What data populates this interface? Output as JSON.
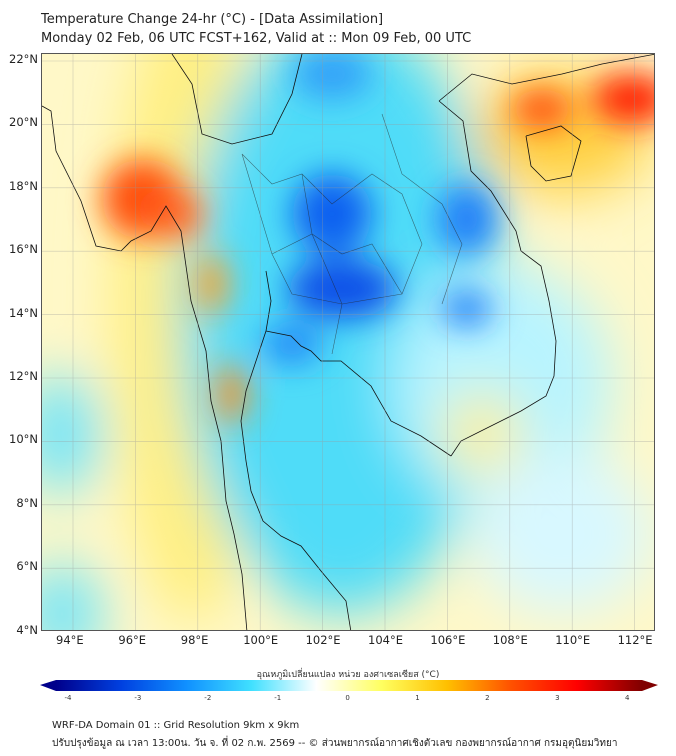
{
  "header": {
    "title": "Temperature Change 24-hr (°C) - [Data Assimilation]",
    "subtitle": "Monday 02 Feb, 06 UTC FCST+162, Valid at :: Mon 09 Feb, 00 UTC"
  },
  "map": {
    "lon_labels": [
      "94°E",
      "96°E",
      "98°E",
      "100°E",
      "102°E",
      "104°E",
      "106°E",
      "108°E",
      "110°E",
      "112°E"
    ],
    "lat_labels": [
      "22°N",
      "20°N",
      "18°N",
      "16°N",
      "14°N",
      "12°N",
      "10°N",
      "8°N",
      "6°N",
      "4°N"
    ],
    "lon_range": [
      93,
      112.7
    ],
    "lat_range": [
      4,
      22.2
    ]
  },
  "colorbar": {
    "label": "อุณหภูมิเปลี่ยนแปลง หน่วย องศาเซลเซียส (°C)",
    "ticks": [
      "-4",
      "-3",
      "-2",
      "-1",
      "0",
      "1",
      "2",
      "3",
      "4"
    ],
    "colors": [
      "#00008b",
      "#0040e0",
      "#1090ff",
      "#40e0ff",
      "#ffffff",
      "#ffff60",
      "#ffc000",
      "#ff5000",
      "#ff0000",
      "#800000"
    ]
  },
  "footer": {
    "line1": "WRF-DA Domain 01 :: Grid Resolution 9km x 9km",
    "line2": "ปรับปรุงข้อมูล ณ เวลา 13:00น. วัน จ. ที่ 02 ก.พ. 2569 -- © ส่วนพยากรณ์อากาศเชิงตัวเลข กองพยากรณ์อากาศ กรมอุตุนิยมวิทยา"
  }
}
